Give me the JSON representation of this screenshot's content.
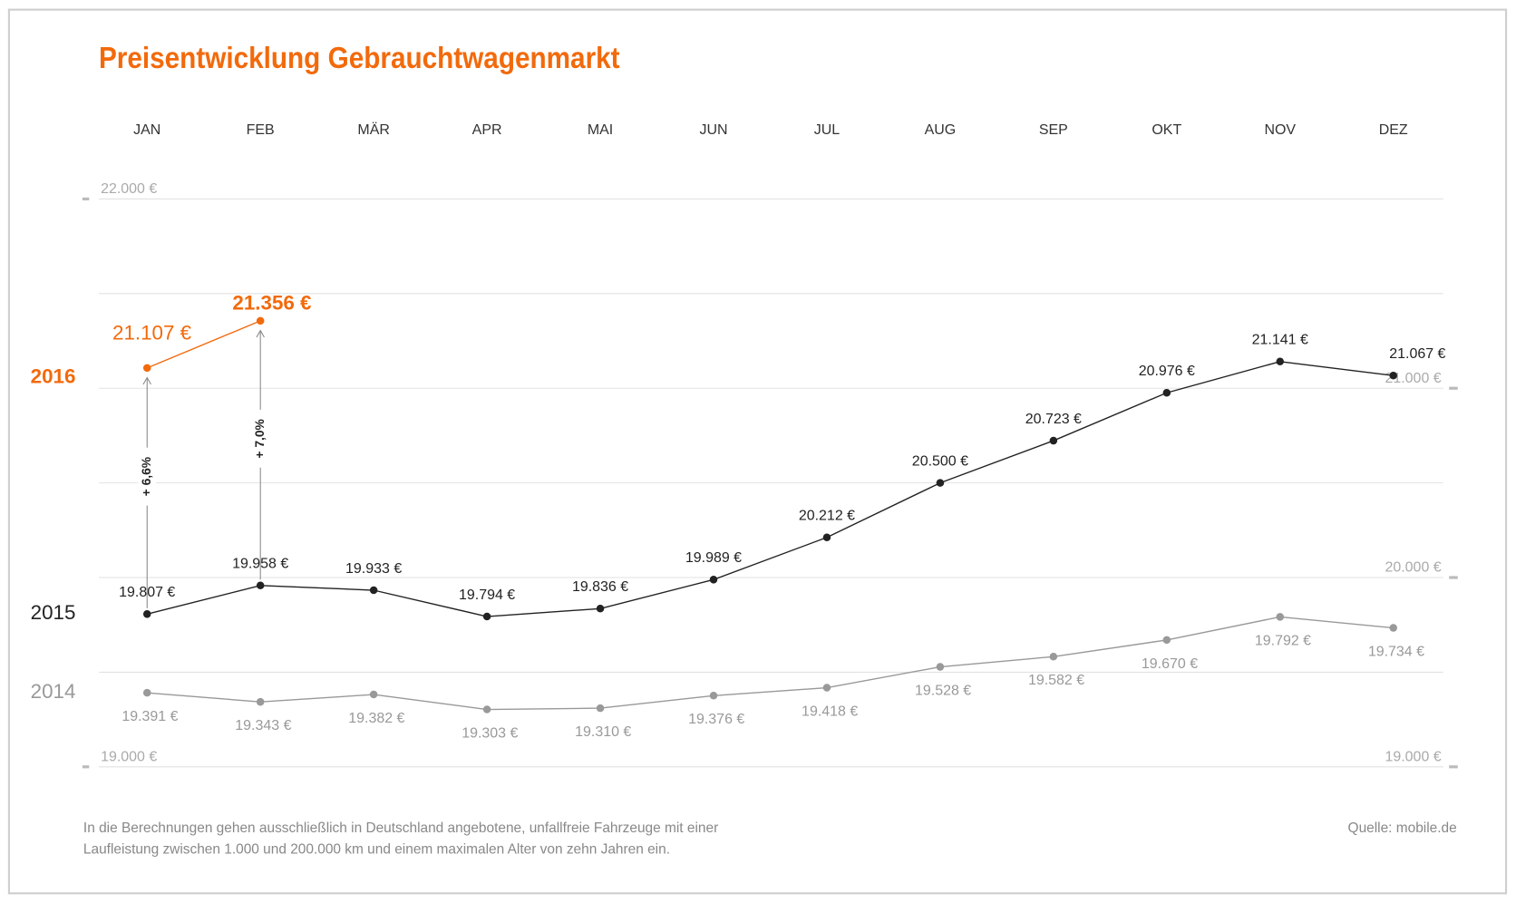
{
  "chart_data": {
    "type": "line",
    "title": "Preisentwicklung Gebrauchtwagenmarkt",
    "categories": [
      "JAN",
      "FEB",
      "MÄR",
      "APR",
      "MAI",
      "JUN",
      "JUL",
      "AUG",
      "SEP",
      "OKT",
      "NOV",
      "DEZ"
    ],
    "series": [
      {
        "name": "2016",
        "color": "#f26a0c",
        "values": [
          21107,
          21356,
          null,
          null,
          null,
          null,
          null,
          null,
          null,
          null,
          null,
          null
        ],
        "value_labels": [
          "21.107 €",
          "21.356 €",
          null,
          null,
          null,
          null,
          null,
          null,
          null,
          null,
          null,
          null
        ]
      },
      {
        "name": "2015",
        "color": "#222222",
        "values": [
          19807,
          19958,
          19933,
          19794,
          19836,
          19989,
          20212,
          20500,
          20723,
          20976,
          21141,
          21067
        ],
        "value_labels": [
          "19.807 €",
          "19.958 €",
          "19.933 €",
          "19.794 €",
          "19.836 €",
          "19.989 €",
          "20.212 €",
          "20.500 €",
          "20.723 €",
          "20.976 €",
          "21.141 €",
          "21.067 €"
        ]
      },
      {
        "name": "2014",
        "color": "#999999",
        "values": [
          19391,
          19343,
          19382,
          19303,
          19310,
          19376,
          19418,
          19528,
          19582,
          19670,
          19792,
          19734
        ],
        "value_labels": [
          "19.391 €",
          "19.343 €",
          "19.382 €",
          "19.303 €",
          "19.310 €",
          "19.376 €",
          "19.418 €",
          "19.528 €",
          "19.582 €",
          "19.670 €",
          "19.792 €",
          "19.734 €"
        ]
      }
    ],
    "ylim": [
      19000,
      22000
    ],
    "yticks": [
      {
        "value": 19000,
        "label": "19.000 €"
      },
      {
        "value": 22000,
        "label": "22.000 €"
      }
    ],
    "y2lim": [
      19000,
      22000
    ],
    "y2ticks": [
      {
        "value": 19000,
        "label": "19.000 €"
      },
      {
        "value": 20000,
        "label": "20.000 €"
      },
      {
        "value": 21000,
        "label": "21.000 €"
      }
    ],
    "gridlines": [
      19000,
      19500,
      20000,
      20500,
      21000,
      21500,
      22000
    ],
    "annotations": [
      "+ 6,6%",
      "+ 7,0%"
    ],
    "footnote": [
      "In die Berechnungen gehen ausschließlich in Deutschland angebotene, unfallfreie Fahrzeuge mit einer",
      "Laufleistung zwischen 1.000 und 200.000 km und einem maximalen Alter von zehn Jahren ein."
    ],
    "source": "Quelle: mobile.de"
  }
}
